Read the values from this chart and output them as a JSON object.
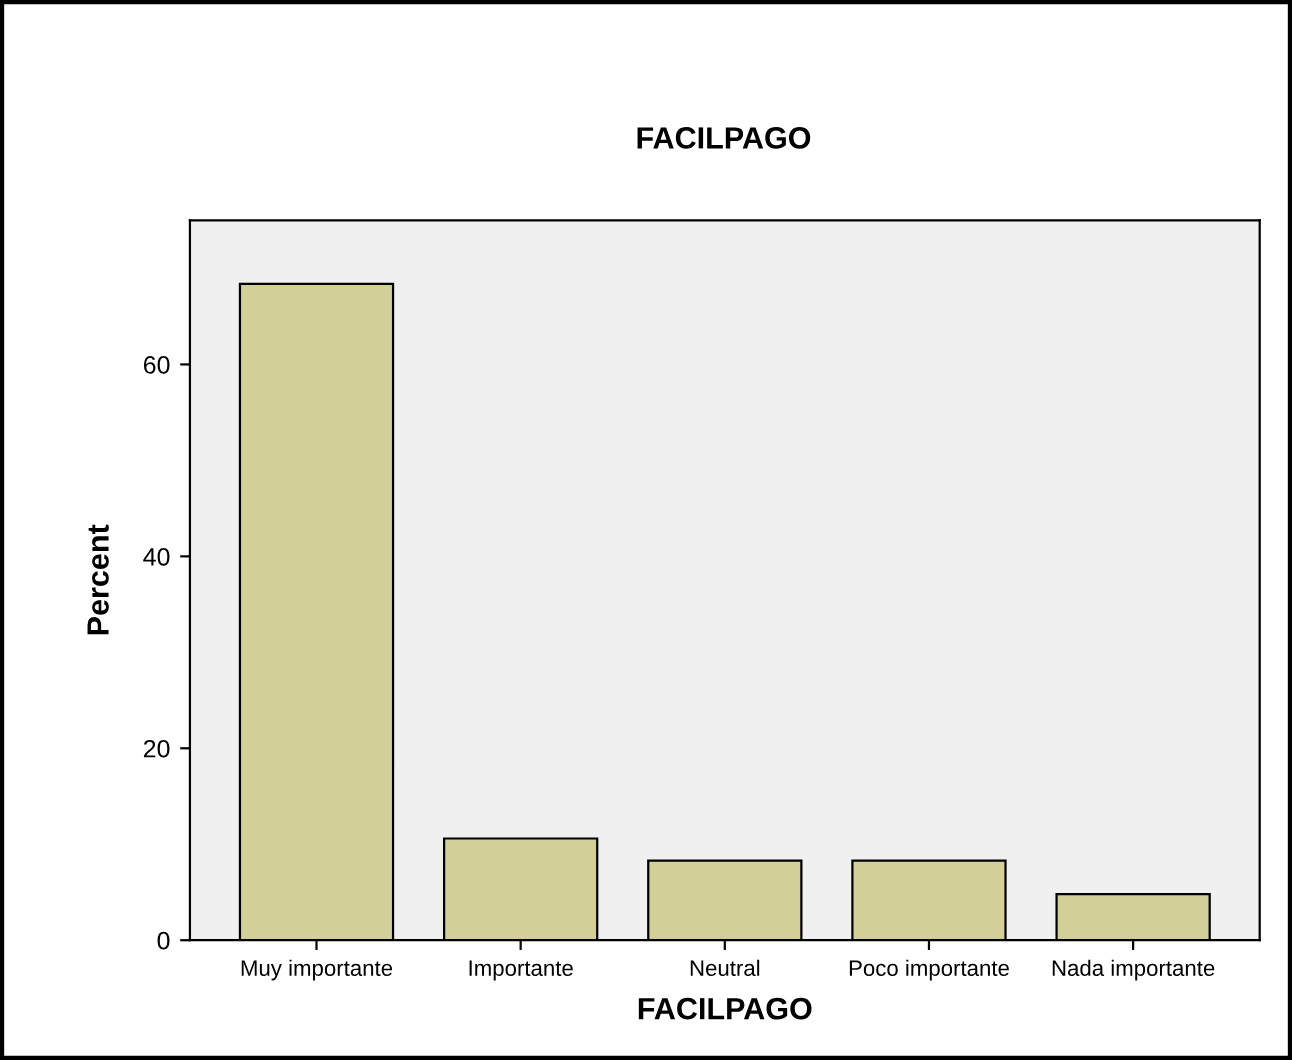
{
  "chart_data": {
    "type": "bar",
    "title": "FACILPAGO",
    "xlabel": "FACILPAGO",
    "ylabel": "Percent",
    "categories": [
      "Muy importante",
      "Importante",
      "Neutral",
      "Poco importante",
      "Nada importante"
    ],
    "values": [
      68.4,
      10.6,
      8.3,
      8.3,
      4.8
    ],
    "color": "#d3cf98",
    "ylim": [
      0,
      75
    ],
    "yticks": [
      0,
      20,
      40,
      60
    ],
    "grid": false,
    "legend": false
  }
}
